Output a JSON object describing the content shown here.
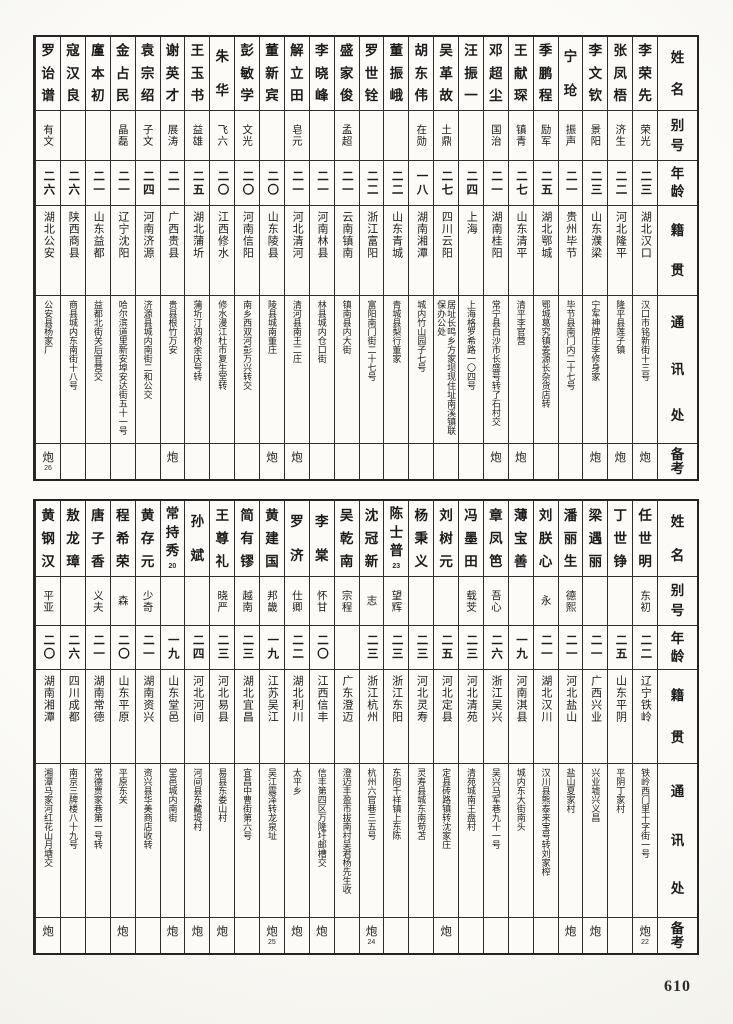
{
  "page": {
    "number": "610"
  },
  "headers": {
    "name": "姓名",
    "alias": "别号",
    "age": "年龄",
    "native": "籍贯",
    "address": "通讯处",
    "remarks": "备考"
  },
  "tables": [
    {
      "persons": [
        {
          "name": "李荣先",
          "name_note": "",
          "alias": "荣光",
          "age": "二三",
          "native": "湖北汉口",
          "address": "汉口市铭新街十三号",
          "remark": "炮",
          "remark_note": ""
        },
        {
          "name": "张凤梧",
          "name_note": "",
          "alias": "济生",
          "age": "二二",
          "native": "河北隆平",
          "address": "隆平县莲子镇",
          "remark": "炮",
          "remark_note": ""
        },
        {
          "name": "李文钦",
          "name_note": "",
          "alias": "景阳",
          "age": "二三",
          "native": "山东濮梁",
          "address": "宁军神牌庄李修身家",
          "remark": "炮",
          "remark_note": ""
        },
        {
          "name": "宁玱",
          "name_note": "",
          "alias": "振声",
          "age": "二一",
          "native": "贵州毕节",
          "address": "毕节县南门内二十七号",
          "remark": "",
          "remark_note": ""
        },
        {
          "name": "季鹏程",
          "name_note": "",
          "alias": "励军",
          "age": "二五",
          "native": "湖北鄂城",
          "address": "鄂城葛究镇姜源长杂货店转",
          "remark": "",
          "remark_note": ""
        },
        {
          "name": "王献琛",
          "name_note": "",
          "alias": "镇青",
          "age": "二七",
          "native": "山东清平",
          "address": "清平李官营",
          "remark": "炮",
          "remark_note": ""
        },
        {
          "name": "邓超尘",
          "name_note": "",
          "alias": "国治",
          "age": "二一",
          "native": "湖南桂阳",
          "address": "常宁县白沙市长盛号转了石村交",
          "remark": "炮",
          "remark_note": ""
        },
        {
          "name": "汪振一",
          "name_note": "",
          "alias": "",
          "age": "二四",
          "native": "上海",
          "address": "上海格罗希路一〇四号",
          "remark": "",
          "remark_note": ""
        },
        {
          "name": "吴革故",
          "name_note": "",
          "alias": "土鼎",
          "age": "二七",
          "native": "四川云阳",
          "address": "居址长鸣乡方家坝现住址南溪镇联保办公处",
          "remark": "",
          "remark_note": ""
        },
        {
          "name": "胡东伟",
          "name_note": "",
          "alias": "在勋",
          "age": "一八",
          "native": "湖南湘潭",
          "address": "城内竹山园子七号",
          "remark": "",
          "remark_note": ""
        },
        {
          "name": "董振峨",
          "name_note": "",
          "alias": "",
          "age": "二二",
          "native": "山东青城",
          "address": "青城县梨行董家",
          "remark": "",
          "remark_note": ""
        },
        {
          "name": "罗世铨",
          "name_note": "",
          "alias": "",
          "age": "二二",
          "native": "浙江富阳",
          "address": "富阳南门街二十七号",
          "remark": "",
          "remark_note": ""
        },
        {
          "name": "盛家俊",
          "name_note": "",
          "alias": "孟超",
          "age": "二一",
          "native": "云南镇南",
          "address": "镇南县内大街",
          "remark": "",
          "remark_note": ""
        },
        {
          "name": "李晓峰",
          "name_note": "",
          "alias": "",
          "age": "二一",
          "native": "河南林县",
          "address": "林县城内仓口街",
          "remark": "",
          "remark_note": ""
        },
        {
          "name": "解立田",
          "name_note": "",
          "alias": "皂元",
          "age": "二一",
          "native": "河北清河",
          "address": "清河县南王二庄",
          "remark": "炮",
          "remark_note": ""
        },
        {
          "name": "董新宾",
          "name_note": "",
          "alias": "",
          "age": "二〇",
          "native": "山东陵县",
          "address": "陵县城南董庄",
          "remark": "炮",
          "remark_note": ""
        },
        {
          "name": "彭敏学",
          "name_note": "",
          "alias": "文光",
          "age": "二〇",
          "native": "河南信阳",
          "address": "南乡西双河彭万兴转交",
          "remark": "",
          "remark_note": ""
        },
        {
          "name": "朱华",
          "name_note": "",
          "alias": "飞六",
          "age": "二〇",
          "native": "江西修水",
          "address": "修水漫江杜市复生堂转",
          "remark": "",
          "remark_note": ""
        },
        {
          "name": "王玉书",
          "name_note": "",
          "alias": "益雄",
          "age": "二五",
          "native": "湖北蒲圻",
          "address": "蒲圻汀泗桥余庆号转",
          "remark": "",
          "remark_note": ""
        },
        {
          "name": "谢英才",
          "name_note": "",
          "alias": "展涛",
          "age": "二一",
          "native": "广西贵县",
          "address": "贵县根竹万安",
          "remark": "炮",
          "remark_note": ""
        },
        {
          "name": "袁宗绍",
          "name_note": "",
          "alias": "子文",
          "age": "二四",
          "native": "河南济源",
          "address": "济源县城内南街二和公交",
          "remark": "",
          "remark_note": ""
        },
        {
          "name": "金占民",
          "name_note": "",
          "alias": "晶磊",
          "age": "二一",
          "native": "辽宁沈阳",
          "address": "哈尔滨道里新安埠安达街五十一号",
          "remark": "",
          "remark_note": ""
        },
        {
          "name": "廑本初",
          "name_note": "",
          "alias": "",
          "age": "二一",
          "native": "山东益都",
          "address": "益都北街关后官营交",
          "remark": "",
          "remark_note": ""
        },
        {
          "name": "寇汉良",
          "name_note": "",
          "alias": "",
          "age": "二六",
          "native": "陕西商县",
          "address": "商县城内东南街十八号",
          "remark": "",
          "remark_note": ""
        },
        {
          "name": "罗诒谱",
          "name_note": "",
          "alias": "有文",
          "age": "二六",
          "native": "湖北公安",
          "address": "公安县杨家厂",
          "remark": "炮",
          "remark_note": "26"
        }
      ]
    },
    {
      "persons": [
        {
          "name": "任世明",
          "name_note": "",
          "alias": "东初",
          "age": "二二",
          "native": "辽宁铁岭",
          "address": "铁岭西门里十字街一号",
          "remark": "炮",
          "remark_note": "22"
        },
        {
          "name": "丁世铮",
          "name_note": "",
          "alias": "",
          "age": "二五",
          "native": "山东平阴",
          "address": "平阴丁家村",
          "remark": "",
          "remark_note": ""
        },
        {
          "name": "梁遇丽",
          "name_note": "",
          "alias": "",
          "age": "二一",
          "native": "广西兴业",
          "address": "兴业墟兴义昌",
          "remark": "炮",
          "remark_note": ""
        },
        {
          "name": "潘丽生",
          "name_note": "",
          "alias": "德熙",
          "age": "二一",
          "native": "河北盐山",
          "address": "盐山夏家村",
          "remark": "炮",
          "remark_note": ""
        },
        {
          "name": "刘朕心",
          "name_note": "",
          "alias": "永",
          "age": "二一",
          "native": "湖北汉川",
          "address": "汉川县熊泰来宝号转刘家榨",
          "remark": "",
          "remark_note": ""
        },
        {
          "name": "薄宝善",
          "name_note": "",
          "alias": "",
          "age": "一九",
          "native": "河南淇县",
          "address": "城内东大街南头",
          "remark": "",
          "remark_note": ""
        },
        {
          "name": "章凤笆",
          "name_note": "",
          "alias": "吾心",
          "age": "二六",
          "native": "浙江吴兴",
          "address": "吴兴马军巷九十一号",
          "remark": "",
          "remark_note": ""
        },
        {
          "name": "冯墨田",
          "name_note": "",
          "alias": "载芠",
          "age": "二三",
          "native": "河北清苑",
          "address": "清苑城南王盘村",
          "remark": "",
          "remark_note": ""
        },
        {
          "name": "刘树元",
          "name_note": "",
          "alias": "",
          "age": "二五",
          "native": "河北定县",
          "address": "定县砖路镇转沈家庄",
          "remark": "炮",
          "remark_note": ""
        },
        {
          "name": "杨秉义",
          "name_note": "",
          "alias": "",
          "age": "二三",
          "native": "河北灵寿",
          "address": "灵寿县城东南苟苫",
          "remark": "",
          "remark_note": ""
        },
        {
          "name": "陈士普",
          "name_note": "23",
          "alias": "望辉",
          "age": "二三",
          "native": "浙江东阳",
          "address": "东阳千祥镇上东陈",
          "remark": "",
          "remark_note": ""
        },
        {
          "name": "沈冠新",
          "name_note": "",
          "alias": "志",
          "age": "二三",
          "native": "浙江杭州",
          "address": "杭州六官巷三五号",
          "remark": "炮",
          "remark_note": "24"
        },
        {
          "name": "吴乾南",
          "name_note": "",
          "alias": "宗程",
          "age": "",
          "native": "广东澄迈",
          "address": "澄迈丰盈市拔南村吴君杨先生收",
          "remark": "",
          "remark_note": ""
        },
        {
          "name": "李棠",
          "name_note": "",
          "alias": "怀甘",
          "age": "二〇",
          "native": "江西信丰",
          "address": "信丰第四区万隆圩邮槽交",
          "remark": "炮",
          "remark_note": ""
        },
        {
          "name": "罗济",
          "name_note": "",
          "alias": "仕卿",
          "age": "二二",
          "native": "湖北利川",
          "address": "太平乡",
          "remark": "炮",
          "remark_note": ""
        },
        {
          "name": "黄建国",
          "name_note": "",
          "alias": "邦畿",
          "age": "一九",
          "native": "江苏吴江",
          "address": "吴江震泽转龙泉址",
          "remark": "炮",
          "remark_note": "25"
        },
        {
          "name": "简有镠",
          "name_note": "",
          "alias": "越南",
          "age": "二三",
          "native": "湖北宜昌",
          "address": "宜昌中曹街第六号",
          "remark": "",
          "remark_note": ""
        },
        {
          "name": "王尊礼",
          "name_note": "",
          "alias": "晓严",
          "age": "二三",
          "native": "河北易县",
          "address": "易县东娄山村",
          "remark": "炮",
          "remark_note": ""
        },
        {
          "name": "孙斌",
          "name_note": "",
          "alias": "",
          "age": "二四",
          "native": "河北河间",
          "address": "河间县东藏堤村",
          "remark": "炮",
          "remark_note": ""
        },
        {
          "name": "常持秀",
          "name_note": "20",
          "alias": "",
          "age": "一九",
          "native": "山东堂邑",
          "address": "堂邑城内南街",
          "remark": "炮",
          "remark_note": ""
        },
        {
          "name": "黄存元",
          "name_note": "",
          "alias": "少奇",
          "age": "二一",
          "native": "湖南资兴",
          "address": "资兴县华美商店收转",
          "remark": "",
          "remark_note": ""
        },
        {
          "name": "程希荣",
          "name_note": "",
          "alias": "森",
          "age": "二〇",
          "native": "山东平原",
          "address": "平原东关",
          "remark": "炮",
          "remark_note": ""
        },
        {
          "name": "唐子香",
          "name_note": "",
          "alias": "义夫",
          "age": "二一",
          "native": "湖南常德",
          "address": "常德贾家巷第一号转",
          "remark": "",
          "remark_note": ""
        },
        {
          "name": "敖龙璋",
          "name_note": "",
          "alias": "",
          "age": "二六",
          "native": "四川成都",
          "address": "南京三牌楼八十九号",
          "remark": "",
          "remark_note": ""
        },
        {
          "name": "黄钢汉",
          "name_note": "",
          "alias": "平亚",
          "age": "二〇",
          "native": "湖南湘潭",
          "address": "湘潭马家河红花山月塘交",
          "remark": "炮",
          "remark_note": ""
        }
      ]
    }
  ]
}
